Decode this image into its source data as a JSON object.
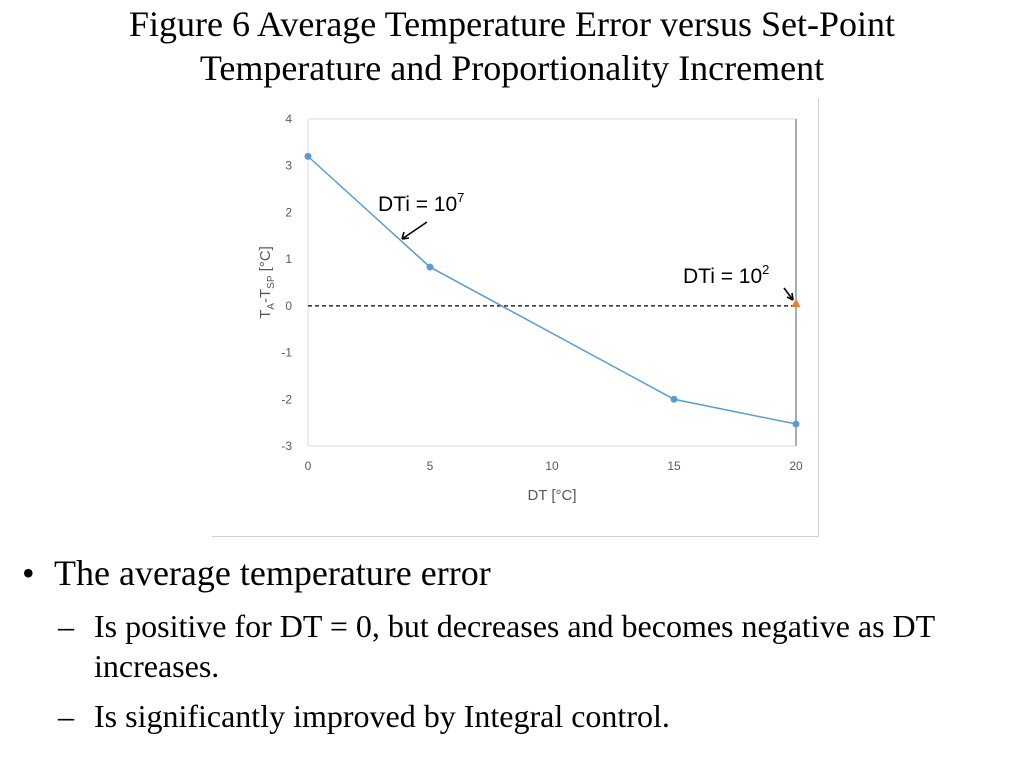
{
  "slide": {
    "title_line1": "Figure 6 Average Temperature Error versus Set-Point",
    "title_line2": "Temperature and Proportionality Increment"
  },
  "chart_data": {
    "type": "line",
    "xlabel": "DT [°C]",
    "ylabel_main": "T",
    "ylabel_sub1": "A",
    "ylabel_mid": "-T",
    "ylabel_sub2": "SP",
    "ylabel_unit": " [°C]",
    "xlim": [
      0,
      20
    ],
    "ylim": [
      -3,
      4
    ],
    "x_ticks": [
      "0",
      "5",
      "10",
      "15",
      "20"
    ],
    "y_ticks": [
      "4",
      "3",
      "2",
      "1",
      "0",
      "-1",
      "-2",
      "-3"
    ],
    "series": [
      {
        "x": [
          0,
          5,
          15,
          20
        ],
        "y": [
          3.2,
          0.83,
          -2.0,
          -2.53
        ],
        "color": "#5b9bd5",
        "marker": "circle"
      },
      {
        "x": [
          20
        ],
        "y": [
          0.05
        ],
        "color": "#ed7d31",
        "marker": "triangle"
      }
    ],
    "reference_line": {
      "y": 0,
      "style": "dashed",
      "color": "#000000"
    },
    "annotations": [
      {
        "text": "DTi = 10",
        "sup": "7"
      },
      {
        "text": "DTi = 10",
        "sup": "2"
      }
    ]
  },
  "bullets": {
    "main": "The average temperature error",
    "sub1": "Is positive for DT = 0, but decreases and becomes negative as DT increases.",
    "sub2": "Is significantly improved by Integral control.",
    "bullet_char": "•",
    "dash_char": "–"
  }
}
